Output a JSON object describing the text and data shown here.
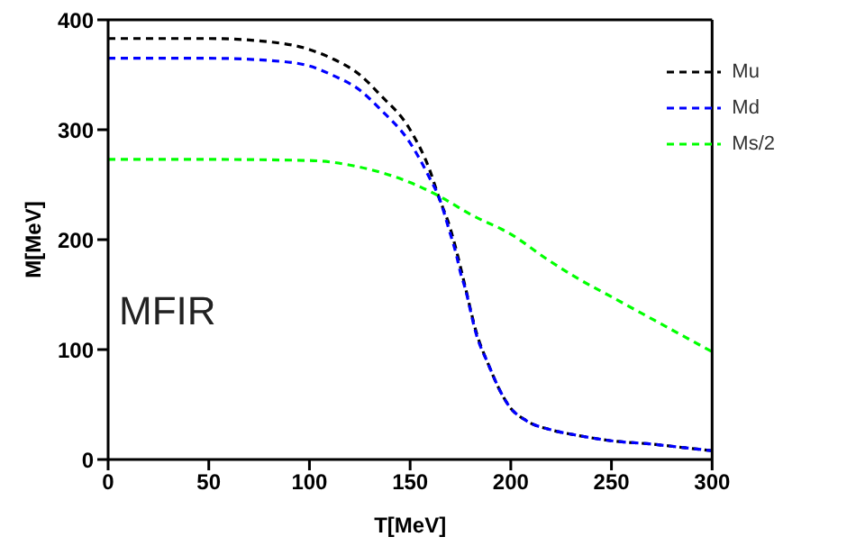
{
  "chart_data": {
    "type": "line",
    "xlabel": "T[MeV]",
    "ylabel": "M[MeV]",
    "xlim": [
      0,
      300
    ],
    "xticks": [
      0,
      50,
      100,
      150,
      200,
      250,
      300
    ],
    "ylim": [
      0,
      400
    ],
    "yticks": [
      0,
      100,
      200,
      300,
      400
    ],
    "grid": false,
    "legend": "top right",
    "line_style": "dashed",
    "marker": "none",
    "annotations": [
      "MFIR"
    ],
    "series": [
      {
        "name": "Mu",
        "color": "#000000",
        "x": [
          0,
          50,
          80,
          100,
          111,
          125,
          135,
          150,
          160,
          164,
          170,
          173,
          177,
          183,
          189,
          194,
          199,
          208,
          220,
          233,
          250,
          270,
          285,
          300
        ],
        "values": [
          383,
          383,
          380,
          373,
          365,
          350,
          332,
          300,
          262,
          240,
          210,
          190,
          160,
          115,
          86,
          65,
          49,
          35,
          27,
          22,
          17,
          14,
          11,
          8
        ]
      },
      {
        "name": "Md",
        "color": "#0000ff",
        "x": [
          0,
          50,
          80,
          100,
          111,
          125,
          135,
          150,
          160,
          164,
          170,
          173,
          175,
          177,
          183,
          189,
          194,
          199,
          208,
          220,
          233,
          250,
          270,
          285,
          300
        ],
        "values": [
          365,
          365,
          363,
          358,
          350,
          336,
          319,
          288,
          255,
          240,
          205,
          186,
          170,
          158,
          113,
          86,
          65,
          49,
          35,
          27,
          22,
          17,
          14,
          11,
          8
        ]
      },
      {
        "name": "Ms/2",
        "color": "#00ff00",
        "x": [
          0,
          50,
          100,
          125,
          150,
          164,
          180,
          200,
          219,
          233,
          250,
          275,
          300
        ],
        "values": [
          273,
          273,
          272,
          266,
          252,
          240,
          223,
          205,
          181,
          165,
          148,
          123,
          98
        ]
      }
    ]
  }
}
